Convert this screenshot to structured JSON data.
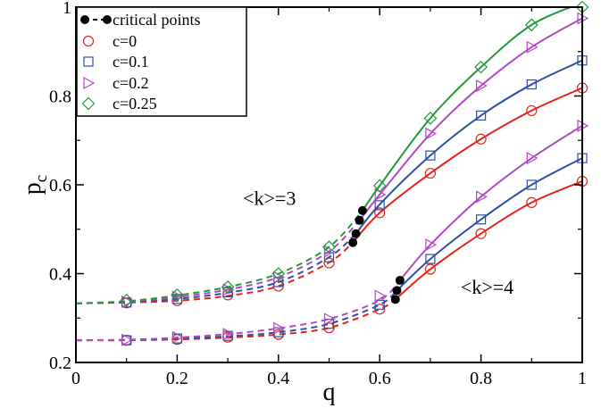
{
  "chart_data": {
    "type": "line",
    "xlabel": "q",
    "ylabel_main": "p",
    "ylabel_sub": "c",
    "xlim": [
      0,
      1
    ],
    "ylim": [
      0.2,
      1.0
    ],
    "xticks": [
      0,
      0.2,
      0.4,
      0.6,
      0.8,
      1
    ],
    "xtick_labels": [
      "0",
      "0.2",
      "0.4",
      "0.6",
      "0.8",
      "1"
    ],
    "yticks": [
      0.2,
      0.4,
      0.6,
      0.8,
      1.0
    ],
    "ytick_labels": [
      "0.2",
      "0.4",
      "0.6",
      "0.8",
      "1"
    ],
    "grid": false,
    "legend_position": "top-left",
    "legend": [
      {
        "label": "critical points",
        "marker": "dot-dash",
        "color": "#000000"
      },
      {
        "label": "c=0",
        "marker": "circle",
        "color": "#e8221b"
      },
      {
        "label": "c=0.1",
        "marker": "square",
        "color": "#2e4fa3"
      },
      {
        "label": "c=0.2",
        "marker": "triangle",
        "color": "#b049c4"
      },
      {
        "label": "c=0.25",
        "marker": "diamond",
        "color": "#1f9a3a"
      }
    ],
    "annotations": [
      {
        "text": "<k>=3",
        "x": 0.33,
        "y": 0.555
      },
      {
        "text": "<k>=4",
        "x": 0.76,
        "y": 0.355
      }
    ],
    "groups": [
      {
        "name": "<k>=3",
        "series": [
          {
            "c": "c=0",
            "color": "#e8221b",
            "marker": "circle",
            "x": [
              0.1,
              0.2,
              0.3,
              0.4,
              0.5,
              0.6,
              0.7,
              0.8,
              0.9,
              1.0
            ],
            "y": [
              0.334,
              0.339,
              0.352,
              0.372,
              0.424,
              0.537,
              0.626,
              0.703,
              0.767,
              0.818
            ],
            "line": [
              [
                0,
                0.333
              ],
              [
                0.1,
                0.335
              ],
              [
                0.2,
                0.339
              ],
              [
                0.3,
                0.35
              ],
              [
                0.4,
                0.372
              ],
              [
                0.5,
                0.425
              ],
              [
                0.547,
                0.47
              ],
              [
                0.6,
                0.537
              ],
              [
                0.7,
                0.626
              ],
              [
                0.8,
                0.703
              ],
              [
                0.9,
                0.767
              ],
              [
                1.0,
                0.818
              ]
            ],
            "critical": [
              0.547,
              0.47
            ]
          },
          {
            "c": "c=0.1",
            "color": "#2e4fa3",
            "marker": "square",
            "x": [
              0.1,
              0.2,
              0.3,
              0.4,
              0.5,
              0.6,
              0.7,
              0.8,
              0.9,
              1.0
            ],
            "y": [
              0.335,
              0.343,
              0.358,
              0.381,
              0.437,
              0.554,
              0.666,
              0.756,
              0.826,
              0.88
            ],
            "line": [
              [
                0,
                0.333
              ],
              [
                0.1,
                0.336
              ],
              [
                0.2,
                0.343
              ],
              [
                0.3,
                0.357
              ],
              [
                0.4,
                0.381
              ],
              [
                0.5,
                0.437
              ],
              [
                0.553,
                0.49
              ],
              [
                0.6,
                0.556
              ],
              [
                0.7,
                0.666
              ],
              [
                0.8,
                0.756
              ],
              [
                0.9,
                0.826
              ],
              [
                1.0,
                0.88
              ]
            ],
            "critical": [
              0.553,
              0.49
            ]
          },
          {
            "c": "c=0.2",
            "color": "#b049c4",
            "marker": "triangle",
            "x": [
              0.1,
              0.2,
              0.3,
              0.4,
              0.5,
              0.6,
              0.7,
              0.8,
              0.9,
              1.0
            ],
            "y": [
              0.337,
              0.348,
              0.364,
              0.392,
              0.45,
              0.578,
              0.715,
              0.823,
              0.91,
              0.975
            ],
            "line": [
              [
                0,
                0.333
              ],
              [
                0.1,
                0.337
              ],
              [
                0.2,
                0.347
              ],
              [
                0.3,
                0.364
              ],
              [
                0.4,
                0.392
              ],
              [
                0.5,
                0.45
              ],
              [
                0.56,
                0.52
              ],
              [
                0.6,
                0.578
              ],
              [
                0.7,
                0.715
              ],
              [
                0.8,
                0.823
              ],
              [
                0.9,
                0.91
              ],
              [
                1.0,
                0.975
              ]
            ],
            "critical": [
              0.56,
              0.52
            ]
          },
          {
            "c": "c=0.25",
            "color": "#1f9a3a",
            "marker": "diamond",
            "x": [
              0.1,
              0.2,
              0.3,
              0.4,
              0.5,
              0.6,
              0.7,
              0.8,
              0.9,
              1.0
            ],
            "y": [
              0.34,
              0.352,
              0.37,
              0.4,
              0.46,
              0.598,
              0.75,
              0.865,
              0.96,
              1.0
            ],
            "line": [
              [
                0,
                0.333
              ],
              [
                0.1,
                0.338
              ],
              [
                0.2,
                0.351
              ],
              [
                0.3,
                0.37
              ],
              [
                0.4,
                0.4
              ],
              [
                0.5,
                0.46
              ],
              [
                0.566,
                0.542
              ],
              [
                0.6,
                0.598
              ],
              [
                0.7,
                0.75
              ],
              [
                0.8,
                0.865
              ],
              [
                0.9,
                0.96
              ],
              [
                1.0,
                1.01
              ]
            ],
            "critical": [
              0.566,
              0.542
            ]
          }
        ]
      },
      {
        "name": "<k>=4",
        "series": [
          {
            "c": "c=0",
            "color": "#e8221b",
            "marker": "circle",
            "x": [
              0.1,
              0.2,
              0.3,
              0.4,
              0.5,
              0.6,
              0.7,
              0.8,
              0.9,
              1.0
            ],
            "y": [
              0.25,
              0.252,
              0.257,
              0.263,
              0.278,
              0.32,
              0.41,
              0.49,
              0.56,
              0.608
            ],
            "line": [
              [
                0,
                0.25
              ],
              [
                0.1,
                0.25
              ],
              [
                0.2,
                0.252
              ],
              [
                0.3,
                0.256
              ],
              [
                0.4,
                0.263
              ],
              [
                0.5,
                0.278
              ],
              [
                0.6,
                0.32
              ],
              [
                0.631,
                0.342
              ],
              [
                0.7,
                0.41
              ],
              [
                0.8,
                0.49
              ],
              [
                0.9,
                0.56
              ],
              [
                1.0,
                0.608
              ]
            ],
            "critical": [
              0.631,
              0.342
            ]
          },
          {
            "c": "c=0.1",
            "color": "#2e4fa3",
            "marker": "square",
            "x": [
              0.1,
              0.2,
              0.3,
              0.4,
              0.5,
              0.6,
              0.7,
              0.8,
              0.9,
              1.0
            ],
            "y": [
              0.25,
              0.254,
              0.26,
              0.268,
              0.287,
              0.33,
              0.433,
              0.522,
              0.6,
              0.66
            ],
            "line": [
              [
                0,
                0.25
              ],
              [
                0.1,
                0.251
              ],
              [
                0.2,
                0.254
              ],
              [
                0.3,
                0.259
              ],
              [
                0.4,
                0.268
              ],
              [
                0.5,
                0.287
              ],
              [
                0.6,
                0.33
              ],
              [
                0.634,
                0.362
              ],
              [
                0.7,
                0.433
              ],
              [
                0.8,
                0.522
              ],
              [
                0.9,
                0.6
              ],
              [
                1.0,
                0.66
              ]
            ],
            "critical": [
              0.634,
              0.362
            ]
          },
          {
            "c": "c=0.2",
            "color": "#b049c4",
            "marker": "triangle",
            "x": [
              0.1,
              0.2,
              0.3,
              0.4,
              0.5,
              0.6,
              0.7,
              0.8,
              0.9,
              1.0
            ],
            "y": [
              0.251,
              0.257,
              0.264,
              0.277,
              0.298,
              0.35,
              0.465,
              0.573,
              0.66,
              0.733
            ],
            "line": [
              [
                0,
                0.25
              ],
              [
                0.1,
                0.251
              ],
              [
                0.2,
                0.256
              ],
              [
                0.3,
                0.264
              ],
              [
                0.4,
                0.277
              ],
              [
                0.5,
                0.298
              ],
              [
                0.6,
                0.34
              ],
              [
                0.64,
                0.385
              ],
              [
                0.7,
                0.465
              ],
              [
                0.8,
                0.573
              ],
              [
                0.9,
                0.66
              ],
              [
                1.0,
                0.733
              ]
            ],
            "critical": [
              0.64,
              0.385
            ]
          }
        ]
      }
    ]
  }
}
